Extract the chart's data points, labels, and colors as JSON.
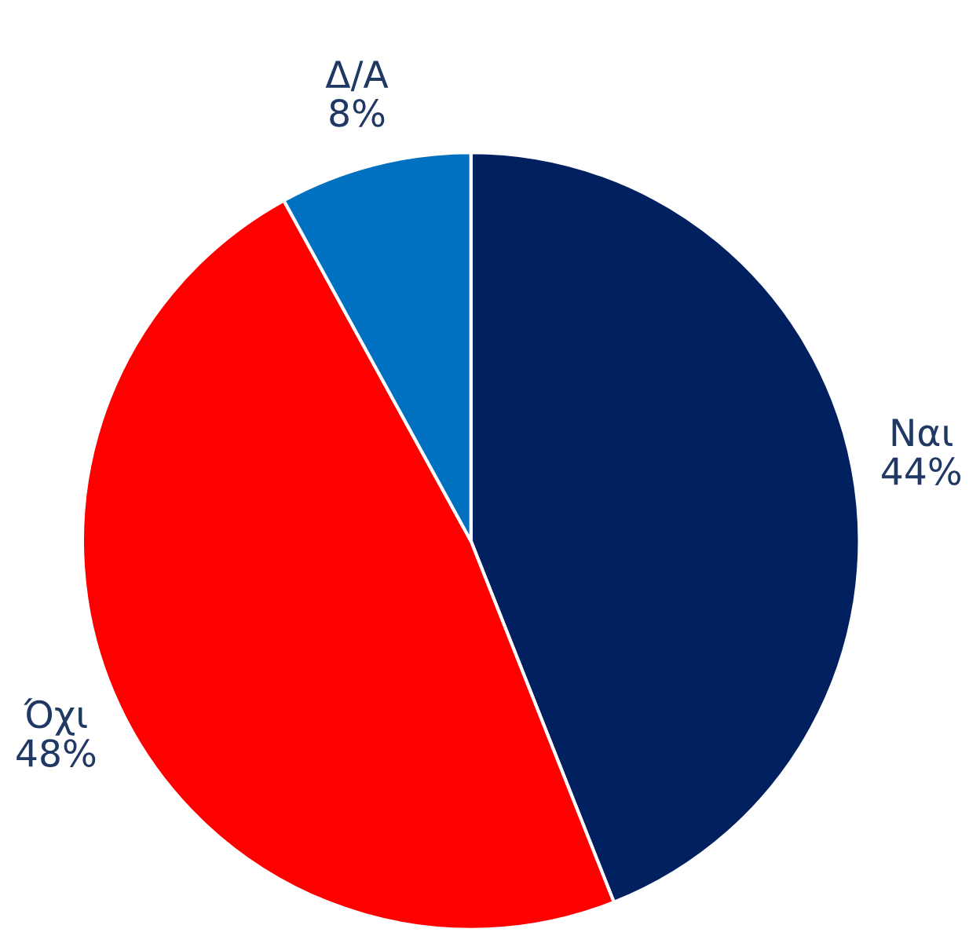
{
  "chart_data": {
    "type": "pie",
    "categories": [
      "Ναι",
      "Όχι",
      "Δ/Α"
    ],
    "values": [
      44,
      48,
      8
    ],
    "colors": [
      "#002060",
      "#ff0000",
      "#0070c0"
    ],
    "value_labels": [
      "44%",
      "48%",
      "8%"
    ]
  }
}
